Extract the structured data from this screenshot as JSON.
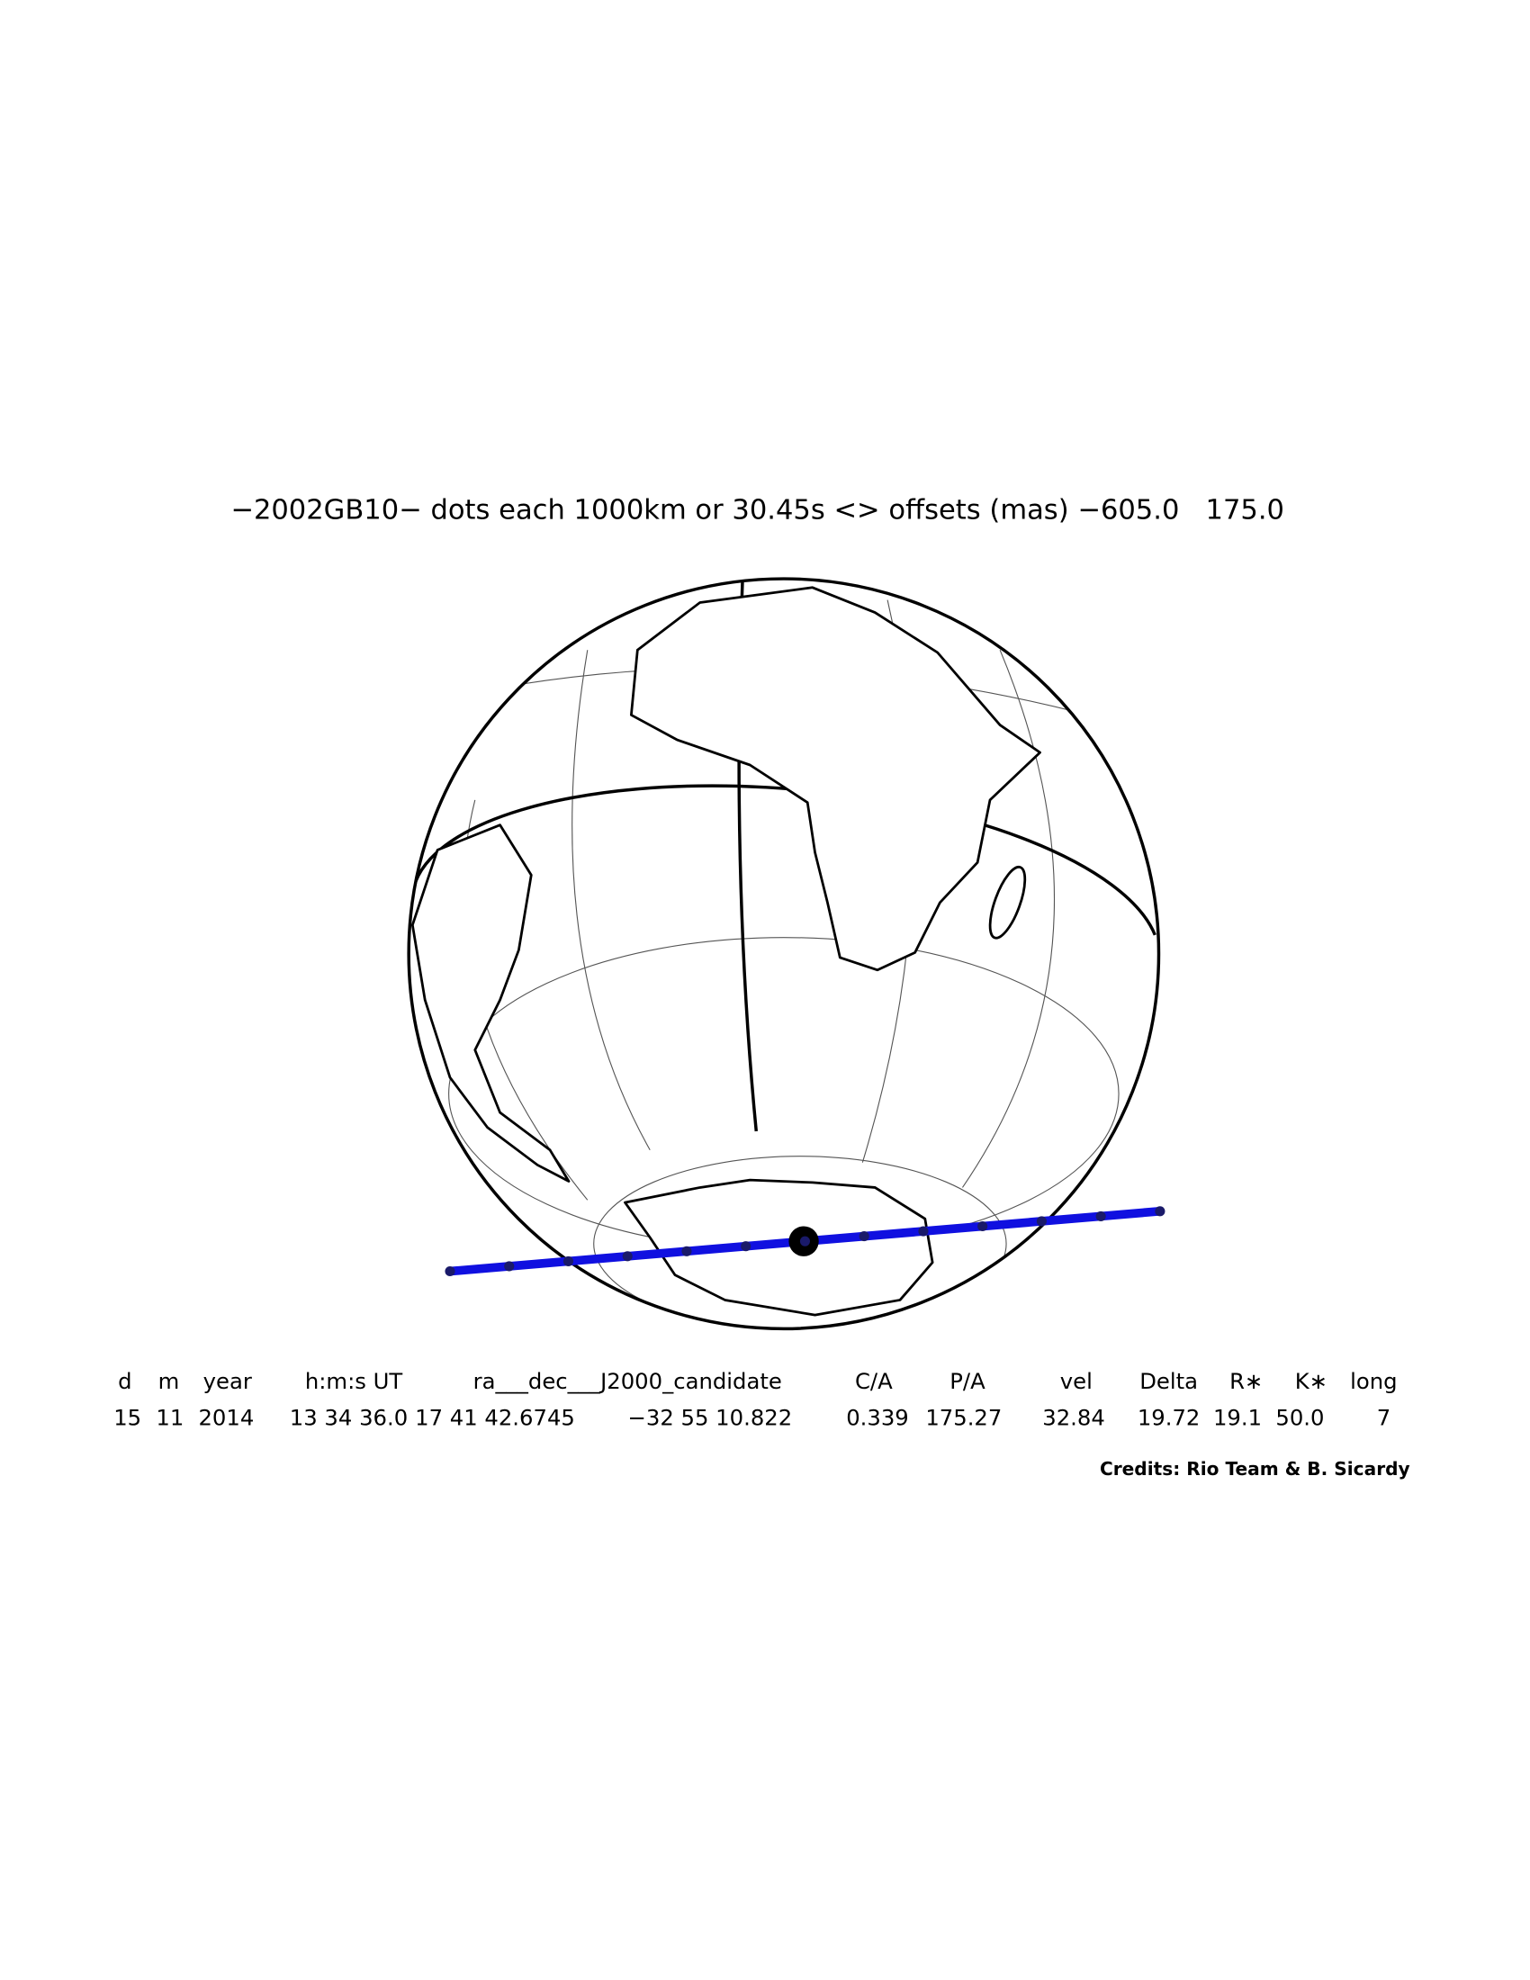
{
  "title": "−2002GB10− dots each 1000km or 30.45s <> offsets (mas) −605.0   175.0",
  "table": {
    "header": [
      "d",
      "m",
      "year",
      "h:m:s UT",
      "ra___dec___J2000_candidate",
      "C/A",
      "P/A",
      "vel",
      "Delta",
      "R∗",
      "K∗",
      "long"
    ],
    "row": [
      "15",
      "11",
      "2014",
      "13 34 36.0",
      "17 41 42.6745",
      "−32 55 10.822",
      "0.339",
      "175.27",
      "32.84",
      "19.72",
      "19.1",
      "50.0",
      "7"
    ]
  },
  "credits": "Credits: Rio Team & B. Sicardy"
}
